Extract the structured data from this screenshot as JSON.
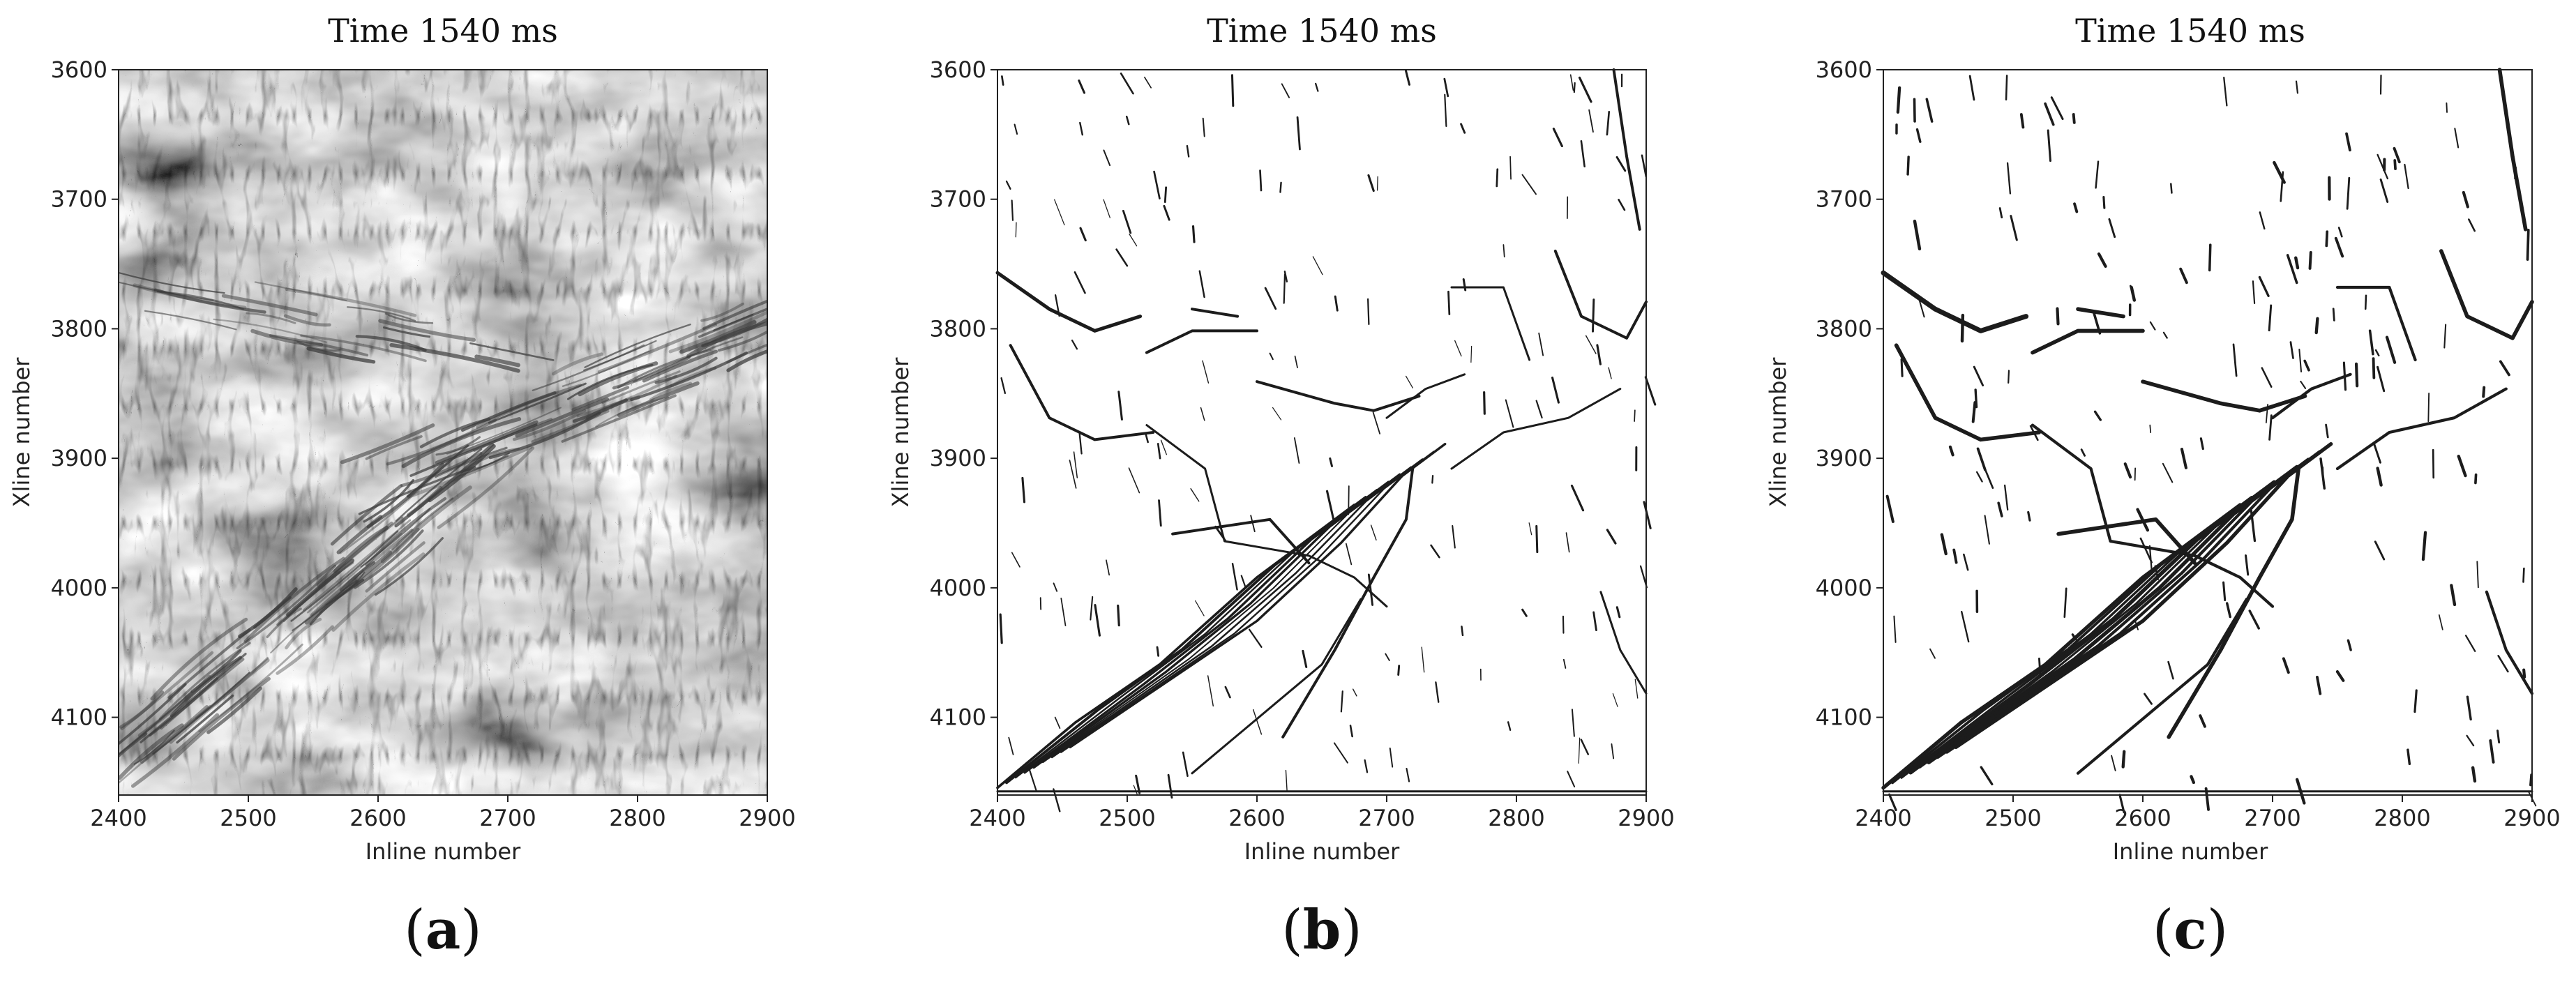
{
  "panels": [
    {
      "id": "a",
      "caption": "a",
      "chart_data": {
        "type": "heatmap",
        "title": "Time 1540 ms",
        "xlabel": "Inline number",
        "ylabel": "Xline number",
        "xlim": [
          2400,
          2900
        ],
        "ylim": [
          4160,
          3600
        ],
        "xticks": [
          "2400",
          "2500",
          "2600",
          "2700",
          "2800",
          "2900"
        ],
        "yticks": [
          "3600",
          "3700",
          "3800",
          "3900",
          "4000",
          "4100"
        ],
        "colormap": "grayscale",
        "rendering": "grayscale seismic time slice",
        "colors": {
          "light": "#e2e2e2",
          "mid": "#9a9a9a",
          "dark": "#3a3a3a"
        }
      }
    },
    {
      "id": "b",
      "caption": "b",
      "chart_data": {
        "type": "heatmap",
        "title": "Time 1540 ms",
        "xlabel": "Inline number",
        "ylabel": "Xline number",
        "xlim": [
          2400,
          2900
        ],
        "ylim": [
          4160,
          3600
        ],
        "xticks": [
          "2400",
          "2500",
          "2600",
          "2700",
          "2800",
          "2900"
        ],
        "yticks": [
          "3600",
          "3700",
          "3800",
          "3900",
          "4000",
          "4100"
        ],
        "colormap": "binary",
        "rendering": "black lineaments on white",
        "colors": {
          "ink": "#1c1c1c",
          "background": "#ffffff"
        }
      }
    },
    {
      "id": "c",
      "caption": "c",
      "chart_data": {
        "type": "heatmap",
        "title": "Time 1540 ms",
        "xlabel": "Inline number",
        "ylabel": "Xline number",
        "xlim": [
          2400,
          2900
        ],
        "ylim": [
          4160,
          3600
        ],
        "xticks": [
          "2400",
          "2500",
          "2600",
          "2700",
          "2800",
          "2900"
        ],
        "yticks": [
          "3600",
          "3700",
          "3800",
          "3900",
          "4000",
          "4100"
        ],
        "colormap": "binary",
        "rendering": "black lineaments on white",
        "colors": {
          "ink": "#1c1c1c",
          "background": "#ffffff"
        }
      }
    }
  ]
}
